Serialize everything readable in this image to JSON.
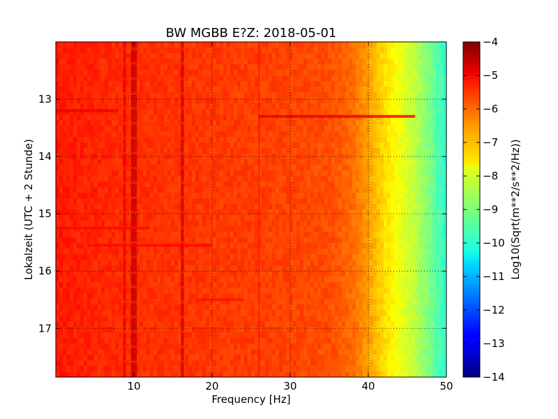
{
  "chart_data": {
    "type": "heatmap",
    "title": "BW MGBB E?Z: 2018-05-01",
    "xlabel": "Frequency [Hz]",
    "ylabel": "Lokalzeit (UTC + 2 Stunde)",
    "xlim": [
      0,
      50
    ],
    "ylim": [
      12.0,
      17.85
    ],
    "x_ticks": [
      10,
      20,
      30,
      40,
      50
    ],
    "y_ticks": [
      13,
      14,
      15,
      16,
      17
    ],
    "y_inverted": true,
    "grid": true,
    "colormap": "jet",
    "colorbar": {
      "label": "Log10(Sqrt(m**2/s**2/Hz))",
      "min": -14,
      "max": -4,
      "ticks": [
        -4,
        -5,
        -6,
        -7,
        -8,
        -9,
        -10,
        -11,
        -12,
        -13,
        -14
      ]
    },
    "base_level_profile": {
      "frequency_hz": [
        0,
        5,
        10,
        20,
        30,
        35,
        38,
        40,
        42,
        44,
        46,
        48,
        50
      ],
      "log10_amplitude": [
        -5.5,
        -5.6,
        -5.7,
        -5.8,
        -5.9,
        -6.0,
        -6.3,
        -6.8,
        -7.4,
        -7.9,
        -8.4,
        -9.1,
        -9.8
      ]
    },
    "vertical_lines_hz": [
      {
        "frequency_hz": 9.8,
        "log10_amplitude": -4.7
      },
      {
        "frequency_hz": 10.2,
        "log10_amplitude": -4.8
      },
      {
        "frequency_hz": 16.2,
        "log10_amplitude": -4.8
      },
      {
        "frequency_hz": 8.8,
        "log10_amplitude": -5.1
      },
      {
        "frequency_hz": 26.0,
        "log10_amplitude": -5.2
      }
    ],
    "horizontal_bands": [
      {
        "time": 13.2,
        "f_start": 0,
        "f_end": 8,
        "log10_amplitude": -5.1
      },
      {
        "time": 13.3,
        "f_start": 26,
        "f_end": 46,
        "log10_amplitude": -5.0
      },
      {
        "time": 15.25,
        "f_start": 0,
        "f_end": 12,
        "log10_amplitude": -5.3
      },
      {
        "time": 15.55,
        "f_start": 4,
        "f_end": 20,
        "log10_amplitude": -5.3
      },
      {
        "time": 16.5,
        "f_start": 18,
        "f_end": 24,
        "log10_amplitude": -5.4
      }
    ]
  }
}
